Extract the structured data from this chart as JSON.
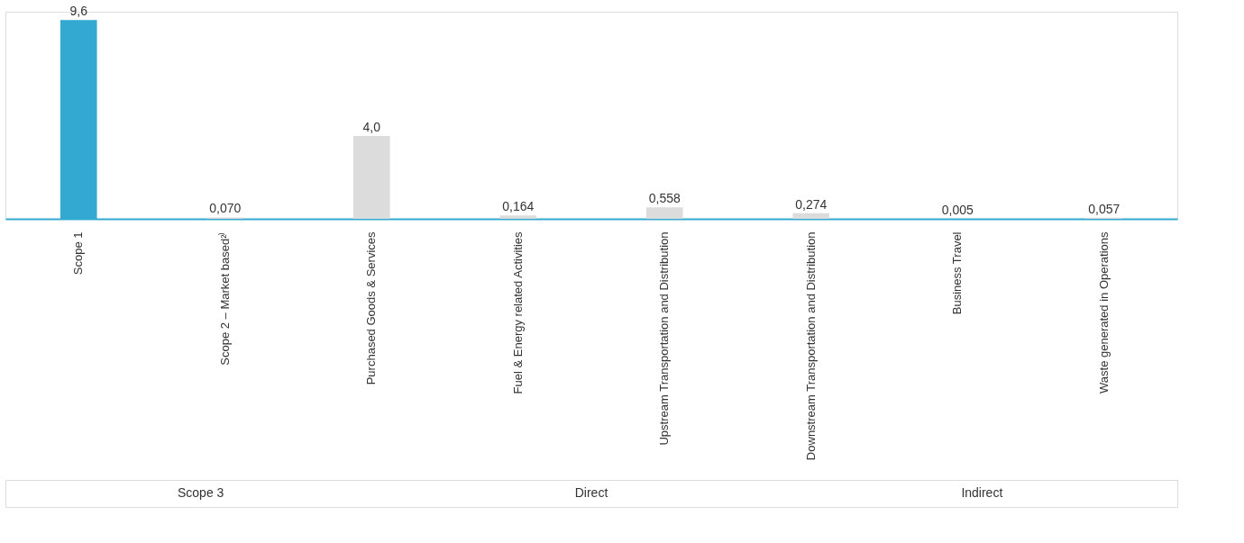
{
  "chart_data": {
    "type": "bar",
    "categories": [
      "Scope 1",
      "Scope 2 – Market based²⁾",
      "Purchased Goods & Services",
      "Fuel & Energy related Activities",
      "Upstream Transportation and Distribution",
      "Downstream Transportation and Distribution",
      "Business Travel",
      "Waste generated in Operations"
    ],
    "values": [
      9.6,
      0.07,
      4.0,
      0.164,
      0.558,
      0.274,
      0.005,
      0.057
    ],
    "colors": [
      "#33a8d0",
      "#dcdcdc",
      "#dcdcdc",
      "#dcdcdc",
      "#dcdcdc",
      "#dcdcdc",
      "#dcdcdc",
      "#dcdcdc"
    ],
    "value_labels": [
      "9,6",
      "0,070",
      "4,0",
      "0,164",
      "0,558",
      "0,274",
      "0,005",
      "0,057"
    ],
    "tick_labels": "x",
    "annotations": [
      "Scope 3",
      "Direct",
      "Indirect"
    ]
  }
}
